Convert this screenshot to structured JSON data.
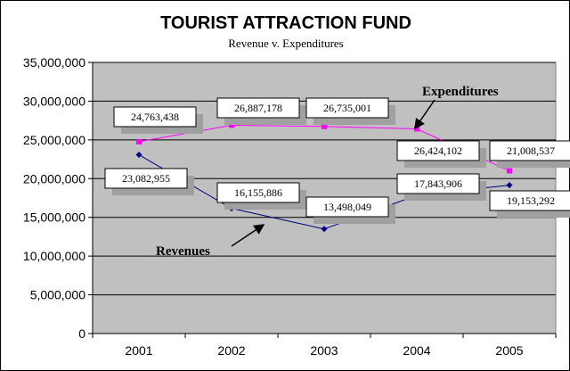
{
  "chart_data": {
    "type": "line",
    "title": "TOURIST ATTRACTION FUND",
    "subtitle": "Revenue v. Expenditures",
    "xlabel": "",
    "ylabel": "",
    "categories": [
      "2001",
      "2002",
      "2003",
      "2004",
      "2005"
    ],
    "ylim": [
      0,
      35000000
    ],
    "y_ticks": [
      0,
      5000000,
      10000000,
      15000000,
      20000000,
      25000000,
      30000000,
      35000000
    ],
    "y_tick_labels": [
      "0",
      "5,000,000",
      "10,000,000",
      "15,000,000",
      "20,000,000",
      "25,000,000",
      "30,000,000",
      "35,000,000"
    ],
    "grid": "horizontal",
    "plot_background": "#c0c0c0",
    "series": [
      {
        "name": "Expenditures",
        "color": "#ff00ff",
        "values": [
          24763438,
          26887178,
          26735001,
          26424102,
          21008537
        ],
        "labels": [
          "24,763,438",
          "26,887,178",
          "26,735,001",
          "26,424,102",
          "21,008,537"
        ]
      },
      {
        "name": "Revenues",
        "color": "#000080",
        "values": [
          23082955,
          16155886,
          13498049,
          17843906,
          19153292
        ],
        "labels": [
          "23,082,955",
          "16,155,886",
          "13,498,049",
          "17,843,906",
          "19,153,292"
        ]
      }
    ]
  }
}
